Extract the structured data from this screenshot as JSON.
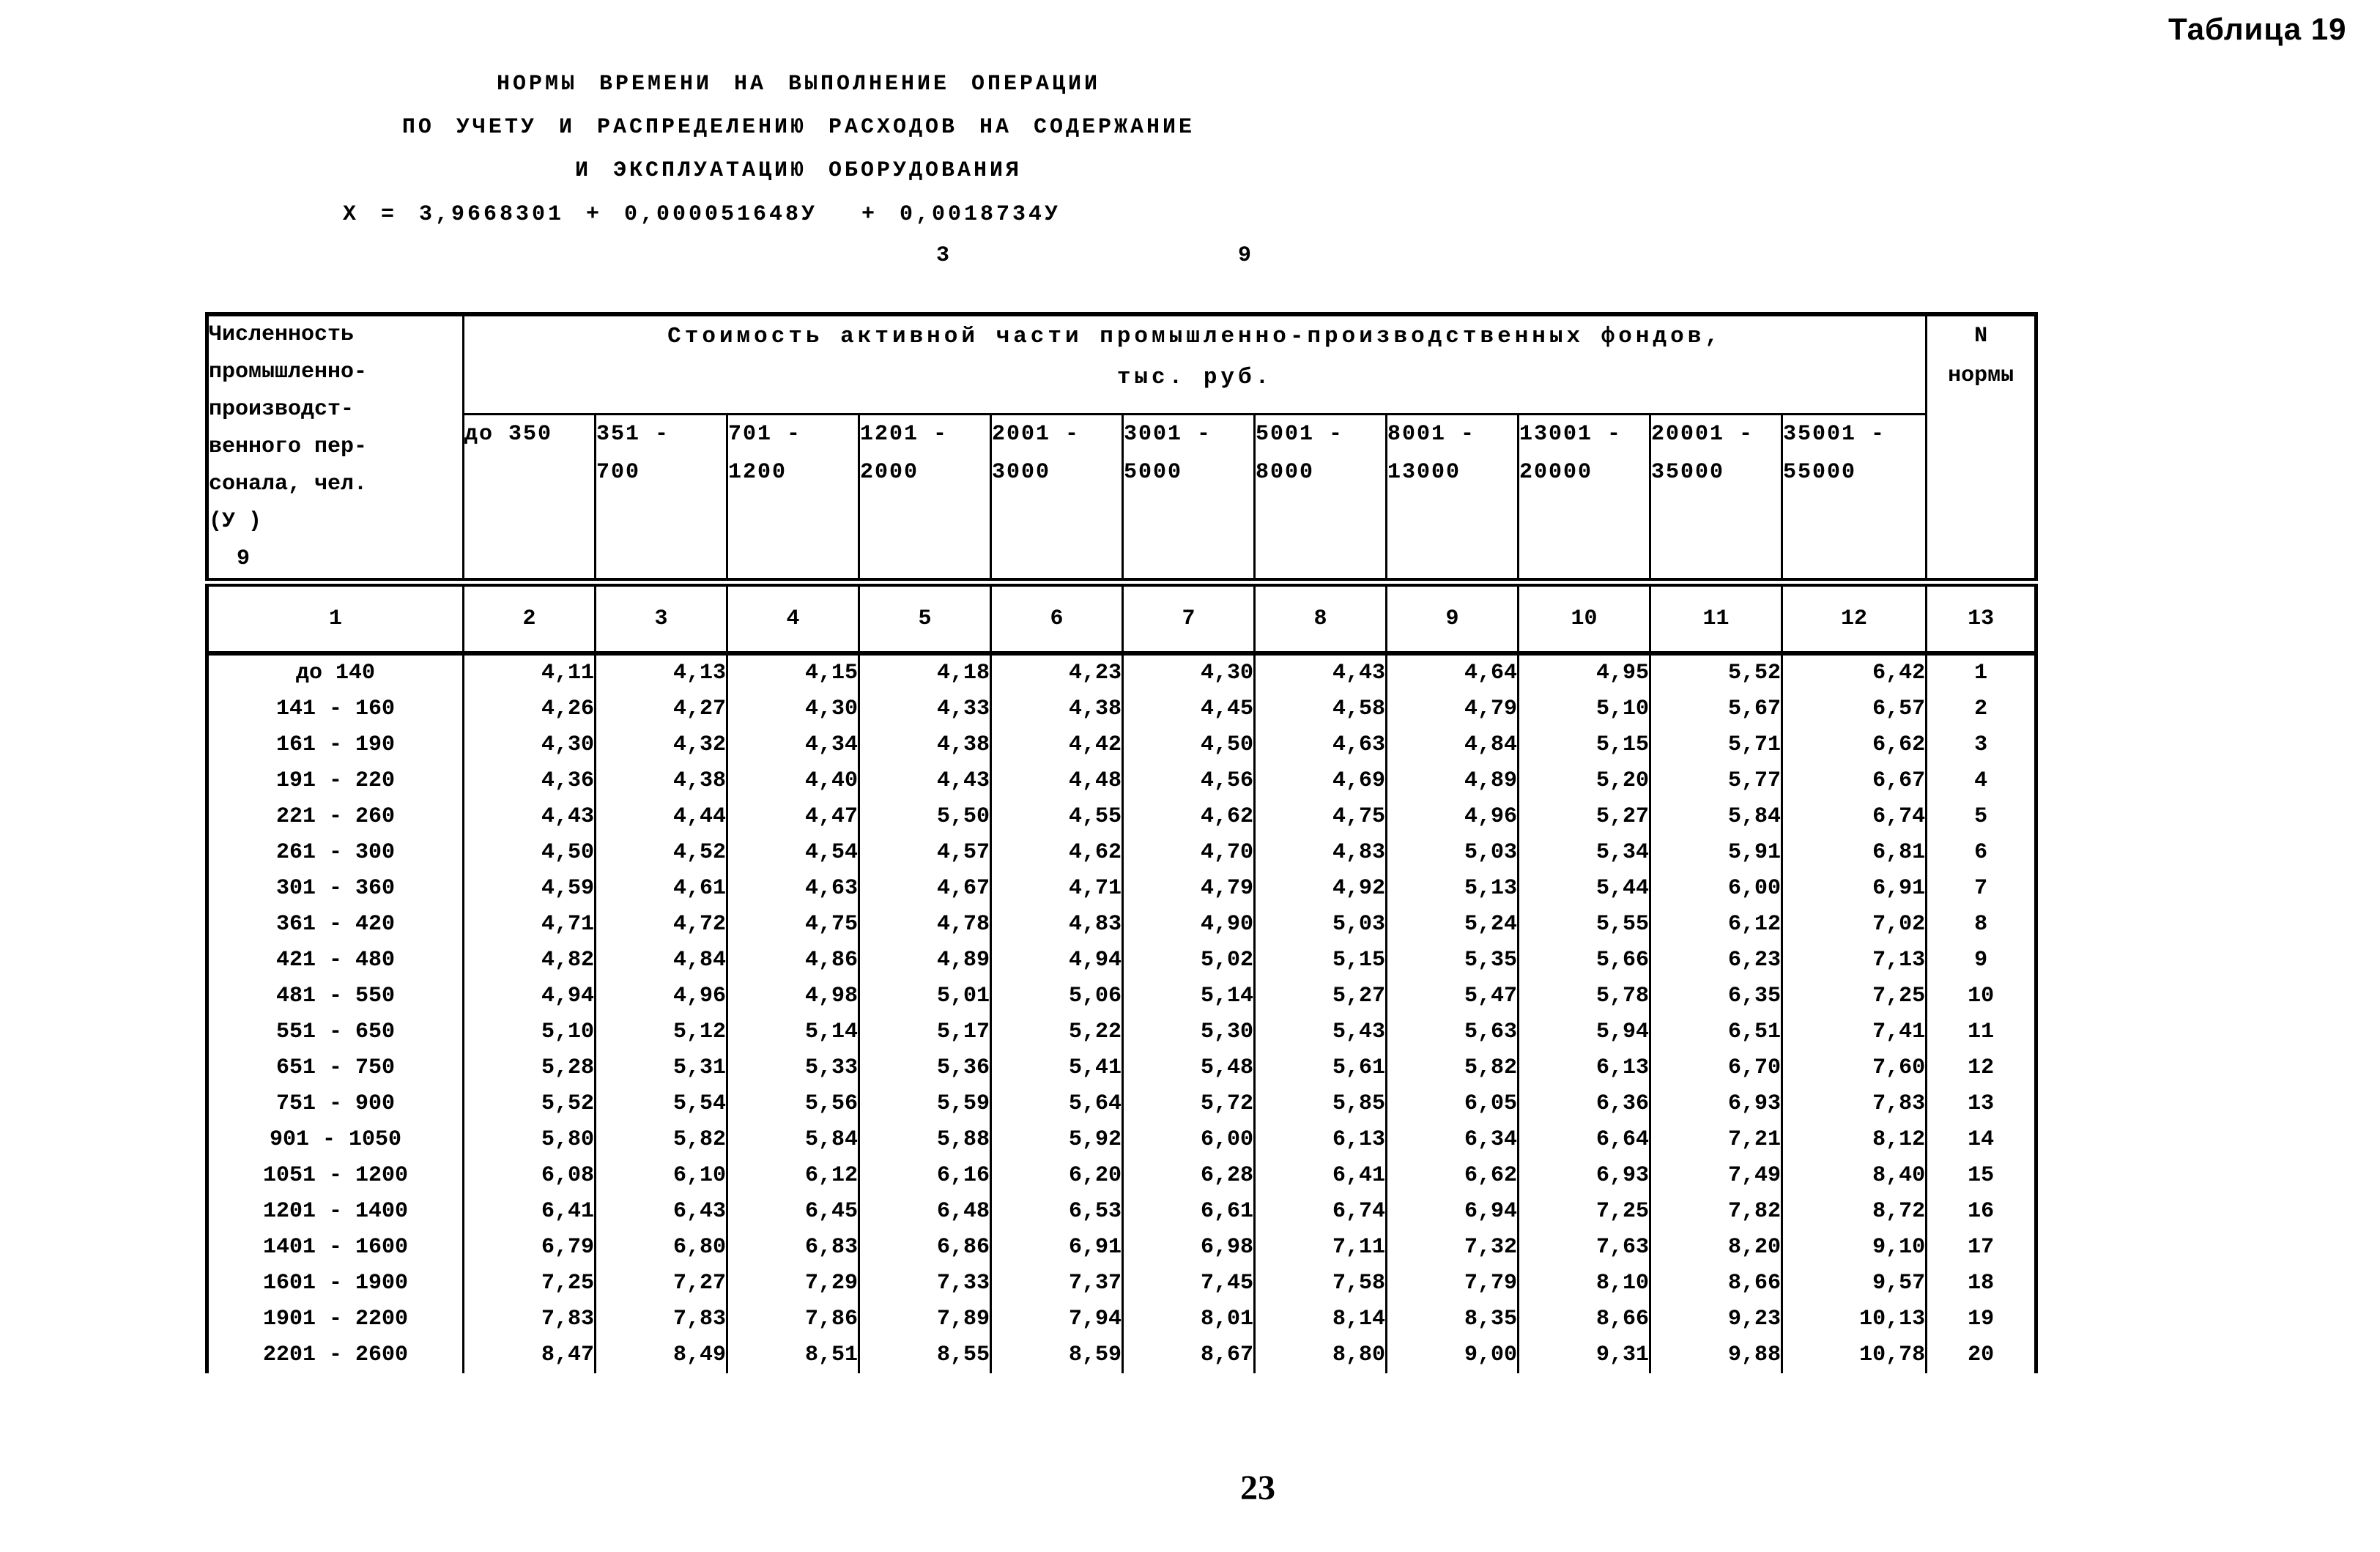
{
  "page": {
    "corner_label": "Таблица 19",
    "page_number": "23"
  },
  "title": {
    "line1": "НОРМЫ ВРЕМЕНИ НА ВЫПОЛНЕНИЕ ОПЕРАЦИИ",
    "line2": "ПО УЧЕТУ И РАСПРЕДЕЛЕНИЮ РАСХОДОВ НА СОДЕРЖАНИЕ",
    "line3": "И ЭКСПЛУАТАЦИЮ ОБОРУДОВАНИЯ",
    "formula": "X = 3,9668301 + 0,000051648У  + 0,0018734У",
    "formula_subscripts": "                           3             9"
  },
  "table": {
    "col1_header_lines": [
      "Численность",
      "промышленно-",
      "производст-",
      "венного пер-",
      "сонала, чел.",
      "(У )"
    ],
    "col1_header_subscript": "9",
    "group_header_line1": "Стоимость активной части промышленно-производственных фондов,",
    "group_header_line2": "тыс. руб.",
    "norm_header_line1": "N",
    "norm_header_line2": "нормы",
    "range_headers": [
      [
        "до 350"
      ],
      [
        "351 -",
        "700"
      ],
      [
        "701 -",
        "1200"
      ],
      [
        "1201 -",
        "2000"
      ],
      [
        "2001 -",
        "3000"
      ],
      [
        "3001 -",
        "5000"
      ],
      [
        "5001 -",
        "8000"
      ],
      [
        "8001 -",
        "13000"
      ],
      [
        "13001 -",
        "20000"
      ],
      [
        "20001 -",
        "35000"
      ],
      [
        "35001 -",
        "55000"
      ]
    ],
    "column_numbers": [
      "1",
      "2",
      "3",
      "4",
      "5",
      "6",
      "7",
      "8",
      "9",
      "10",
      "11",
      "12",
      "13"
    ],
    "rows": [
      {
        "label": "до 140",
        "values": [
          "4,11",
          "4,13",
          "4,15",
          "4,18",
          "4,23",
          "4,30",
          "4,43",
          "4,64",
          "4,95",
          "5,52",
          "6,42"
        ],
        "norm": "1"
      },
      {
        "label": "141 - 160",
        "values": [
          "4,26",
          "4,27",
          "4,30",
          "4,33",
          "4,38",
          "4,45",
          "4,58",
          "4,79",
          "5,10",
          "5,67",
          "6,57"
        ],
        "norm": "2"
      },
      {
        "label": "161 - 190",
        "values": [
          "4,30",
          "4,32",
          "4,34",
          "4,38",
          "4,42",
          "4,50",
          "4,63",
          "4,84",
          "5,15",
          "5,71",
          "6,62"
        ],
        "norm": "3"
      },
      {
        "label": "191 - 220",
        "values": [
          "4,36",
          "4,38",
          "4,40",
          "4,43",
          "4,48",
          "4,56",
          "4,69",
          "4,89",
          "5,20",
          "5,77",
          "6,67"
        ],
        "norm": "4"
      },
      {
        "label": "221 - 260",
        "values": [
          "4,43",
          "4,44",
          "4,47",
          "5,50",
          "4,55",
          "4,62",
          "4,75",
          "4,96",
          "5,27",
          "5,84",
          "6,74"
        ],
        "norm": "5"
      },
      {
        "label": "261 - 300",
        "values": [
          "4,50",
          "4,52",
          "4,54",
          "4,57",
          "4,62",
          "4,70",
          "4,83",
          "5,03",
          "5,34",
          "5,91",
          "6,81"
        ],
        "norm": "6"
      },
      {
        "label": "301 - 360",
        "values": [
          "4,59",
          "4,61",
          "4,63",
          "4,67",
          "4,71",
          "4,79",
          "4,92",
          "5,13",
          "5,44",
          "6,00",
          "6,91"
        ],
        "norm": "7"
      },
      {
        "label": "361 - 420",
        "values": [
          "4,71",
          "4,72",
          "4,75",
          "4,78",
          "4,83",
          "4,90",
          "5,03",
          "5,24",
          "5,55",
          "6,12",
          "7,02"
        ],
        "norm": "8"
      },
      {
        "label": "421 - 480",
        "values": [
          "4,82",
          "4,84",
          "4,86",
          "4,89",
          "4,94",
          "5,02",
          "5,15",
          "5,35",
          "5,66",
          "6,23",
          "7,13"
        ],
        "norm": "9"
      },
      {
        "label": "481 - 550",
        "values": [
          "4,94",
          "4,96",
          "4,98",
          "5,01",
          "5,06",
          "5,14",
          "5,27",
          "5,47",
          "5,78",
          "6,35",
          "7,25"
        ],
        "norm": "10"
      },
      {
        "label": "551 - 650",
        "values": [
          "5,10",
          "5,12",
          "5,14",
          "5,17",
          "5,22",
          "5,30",
          "5,43",
          "5,63",
          "5,94",
          "6,51",
          "7,41"
        ],
        "norm": "11"
      },
      {
        "label": "651 - 750",
        "values": [
          "5,28",
          "5,31",
          "5,33",
          "5,36",
          "5,41",
          "5,48",
          "5,61",
          "5,82",
          "6,13",
          "6,70",
          "7,60"
        ],
        "norm": "12"
      },
      {
        "label": "751 - 900",
        "values": [
          "5,52",
          "5,54",
          "5,56",
          "5,59",
          "5,64",
          "5,72",
          "5,85",
          "6,05",
          "6,36",
          "6,93",
          "7,83"
        ],
        "norm": "13"
      },
      {
        "label": "901 - 1050",
        "values": [
          "5,80",
          "5,82",
          "5,84",
          "5,88",
          "5,92",
          "6,00",
          "6,13",
          "6,34",
          "6,64",
          "7,21",
          "8,12"
        ],
        "norm": "14"
      },
      {
        "label": "1051 - 1200",
        "values": [
          "6,08",
          "6,10",
          "6,12",
          "6,16",
          "6,20",
          "6,28",
          "6,41",
          "6,62",
          "6,93",
          "7,49",
          "8,40"
        ],
        "norm": "15"
      },
      {
        "label": "1201 - 1400",
        "values": [
          "6,41",
          "6,43",
          "6,45",
          "6,48",
          "6,53",
          "6,61",
          "6,74",
          "6,94",
          "7,25",
          "7,82",
          "8,72"
        ],
        "norm": "16"
      },
      {
        "label": "1401 - 1600",
        "values": [
          "6,79",
          "6,80",
          "6,83",
          "6,86",
          "6,91",
          "6,98",
          "7,11",
          "7,32",
          "7,63",
          "8,20",
          "9,10"
        ],
        "norm": "17"
      },
      {
        "label": "1601 - 1900",
        "values": [
          "7,25",
          "7,27",
          "7,29",
          "7,33",
          "7,37",
          "7,45",
          "7,58",
          "7,79",
          "8,10",
          "8,66",
          "9,57"
        ],
        "norm": "18"
      },
      {
        "label": "1901 - 2200",
        "values": [
          "7,83",
          "7,83",
          "7,86",
          "7,89",
          "7,94",
          "8,01",
          "8,14",
          "8,35",
          "8,66",
          "9,23",
          "10,13"
        ],
        "norm": "19"
      },
      {
        "label": "2201 - 2600",
        "values": [
          "8,47",
          "8,49",
          "8,51",
          "8,55",
          "8,59",
          "8,67",
          "8,80",
          "9,00",
          "9,31",
          "9,88",
          "10,78"
        ],
        "norm": "20"
      }
    ]
  }
}
